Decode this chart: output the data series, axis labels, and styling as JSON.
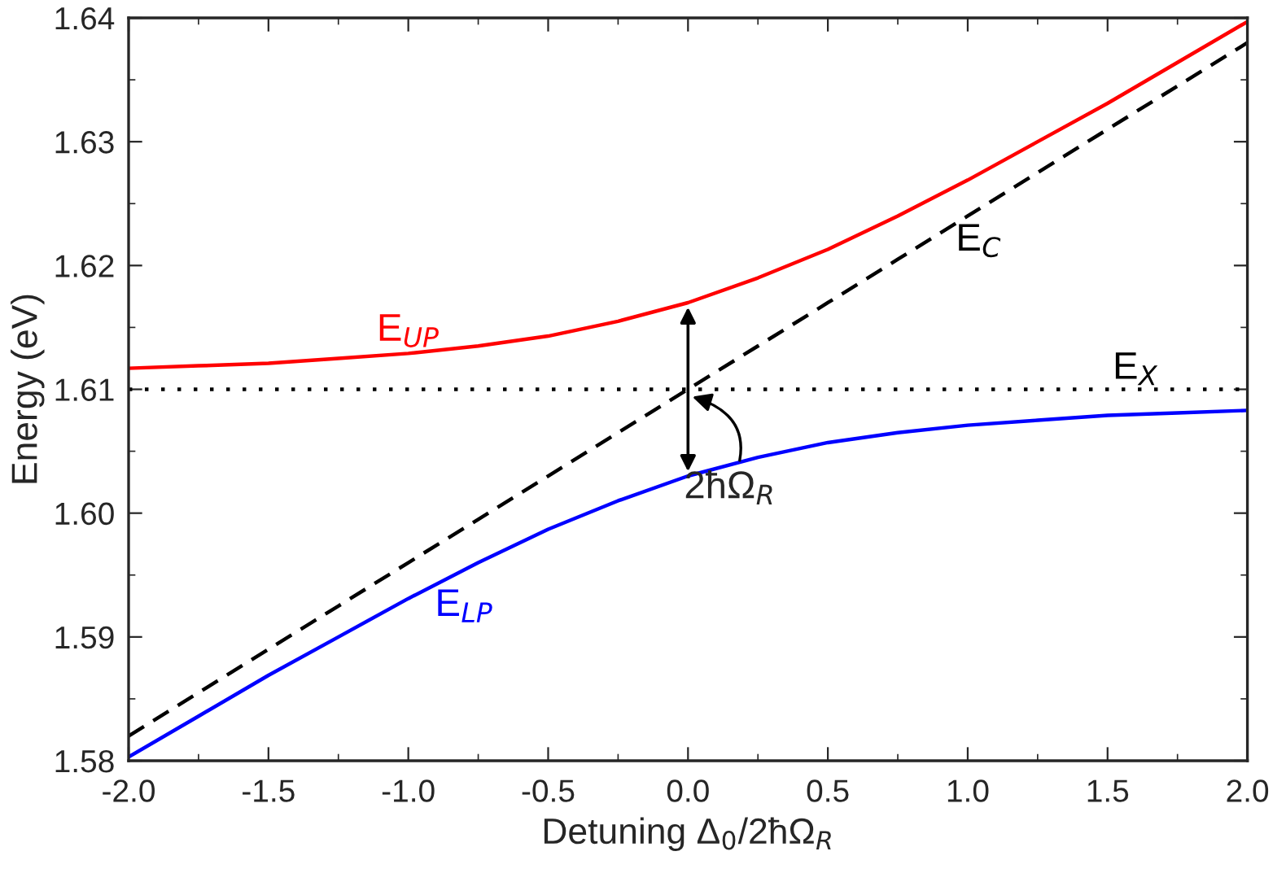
{
  "chart_data": {
    "type": "line",
    "xlabel": "Detuning Δ$_{0}$/2ħΩ$_{R}$",
    "ylabel": "Energy (eV)",
    "x": [
      -2,
      -1.75,
      -1.5,
      -1.25,
      -1,
      -0.75,
      -0.5,
      -0.25,
      0,
      0.25,
      0.5,
      0.75,
      1,
      1.25,
      1.5,
      1.75,
      2
    ],
    "xlim": [
      -2,
      2
    ],
    "xticks": [
      {
        "value": -2,
        "label": "-2.0"
      },
      {
        "value": -1.5,
        "label": "-1.5"
      },
      {
        "value": -1,
        "label": "-1.0"
      },
      {
        "value": -0.5,
        "label": "-0.5"
      },
      {
        "value": 0,
        "label": "0.0"
      },
      {
        "value": 0.5,
        "label": "0.5"
      },
      {
        "value": 1,
        "label": "1.0"
      },
      {
        "value": 1.5,
        "label": "1.5"
      },
      {
        "value": 2,
        "label": "2.0"
      }
    ],
    "ylim": [
      1.58,
      1.64
    ],
    "yticks": [
      {
        "value": 1.58,
        "label": "1.58"
      },
      {
        "value": 1.59,
        "label": "1.59"
      },
      {
        "value": 1.6,
        "label": "1.60"
      },
      {
        "value": 1.61,
        "label": "1.61"
      },
      {
        "value": 1.62,
        "label": "1.62"
      },
      {
        "value": 1.63,
        "label": "1.63"
      },
      {
        "value": 1.64,
        "label": "1.64"
      }
    ],
    "grid": false,
    "legend": false,
    "series": [
      {
        "name": "E$_{UP}$",
        "color": "#ff0000",
        "line_style": "solid",
        "values": [
          1.6117,
          1.6119,
          1.6121,
          1.6125,
          1.6129,
          1.6135,
          1.6143,
          1.6155,
          1.617,
          1.619,
          1.6213,
          1.624,
          1.6269,
          1.63,
          1.6331,
          1.6364,
          1.6397
        ]
      },
      {
        "name": "E$_{LP}$",
        "color": "#0000ff",
        "line_style": "solid",
        "values": [
          1.5803,
          1.5836,
          1.5869,
          1.59,
          1.5931,
          1.596,
          1.5987,
          1.601,
          1.603,
          1.6045,
          1.6057,
          1.6065,
          1.6071,
          1.6075,
          1.6079,
          1.6081,
          1.6083
        ]
      },
      {
        "name": "E$_{C}$",
        "color": "#000000",
        "line_style": "dashed",
        "values": [
          1.582,
          1.5855,
          1.589,
          1.5925,
          1.596,
          1.5995,
          1.603,
          1.6065,
          1.61,
          1.6135,
          1.617,
          1.6205,
          1.624,
          1.6275,
          1.631,
          1.6345,
          1.638
        ]
      },
      {
        "name": "E$_{X}$",
        "color": "#000000",
        "line_style": "dotted",
        "values": [
          1.61,
          1.61,
          1.61,
          1.61,
          1.61,
          1.61,
          1.61,
          1.61,
          1.61,
          1.61,
          1.61,
          1.61,
          1.61,
          1.61,
          1.61,
          1.61,
          1.61
        ]
      }
    ],
    "annotations": [
      {
        "text": "2ħΩ$_{R}$",
        "x": 0,
        "y": 1.6095
      }
    ]
  }
}
